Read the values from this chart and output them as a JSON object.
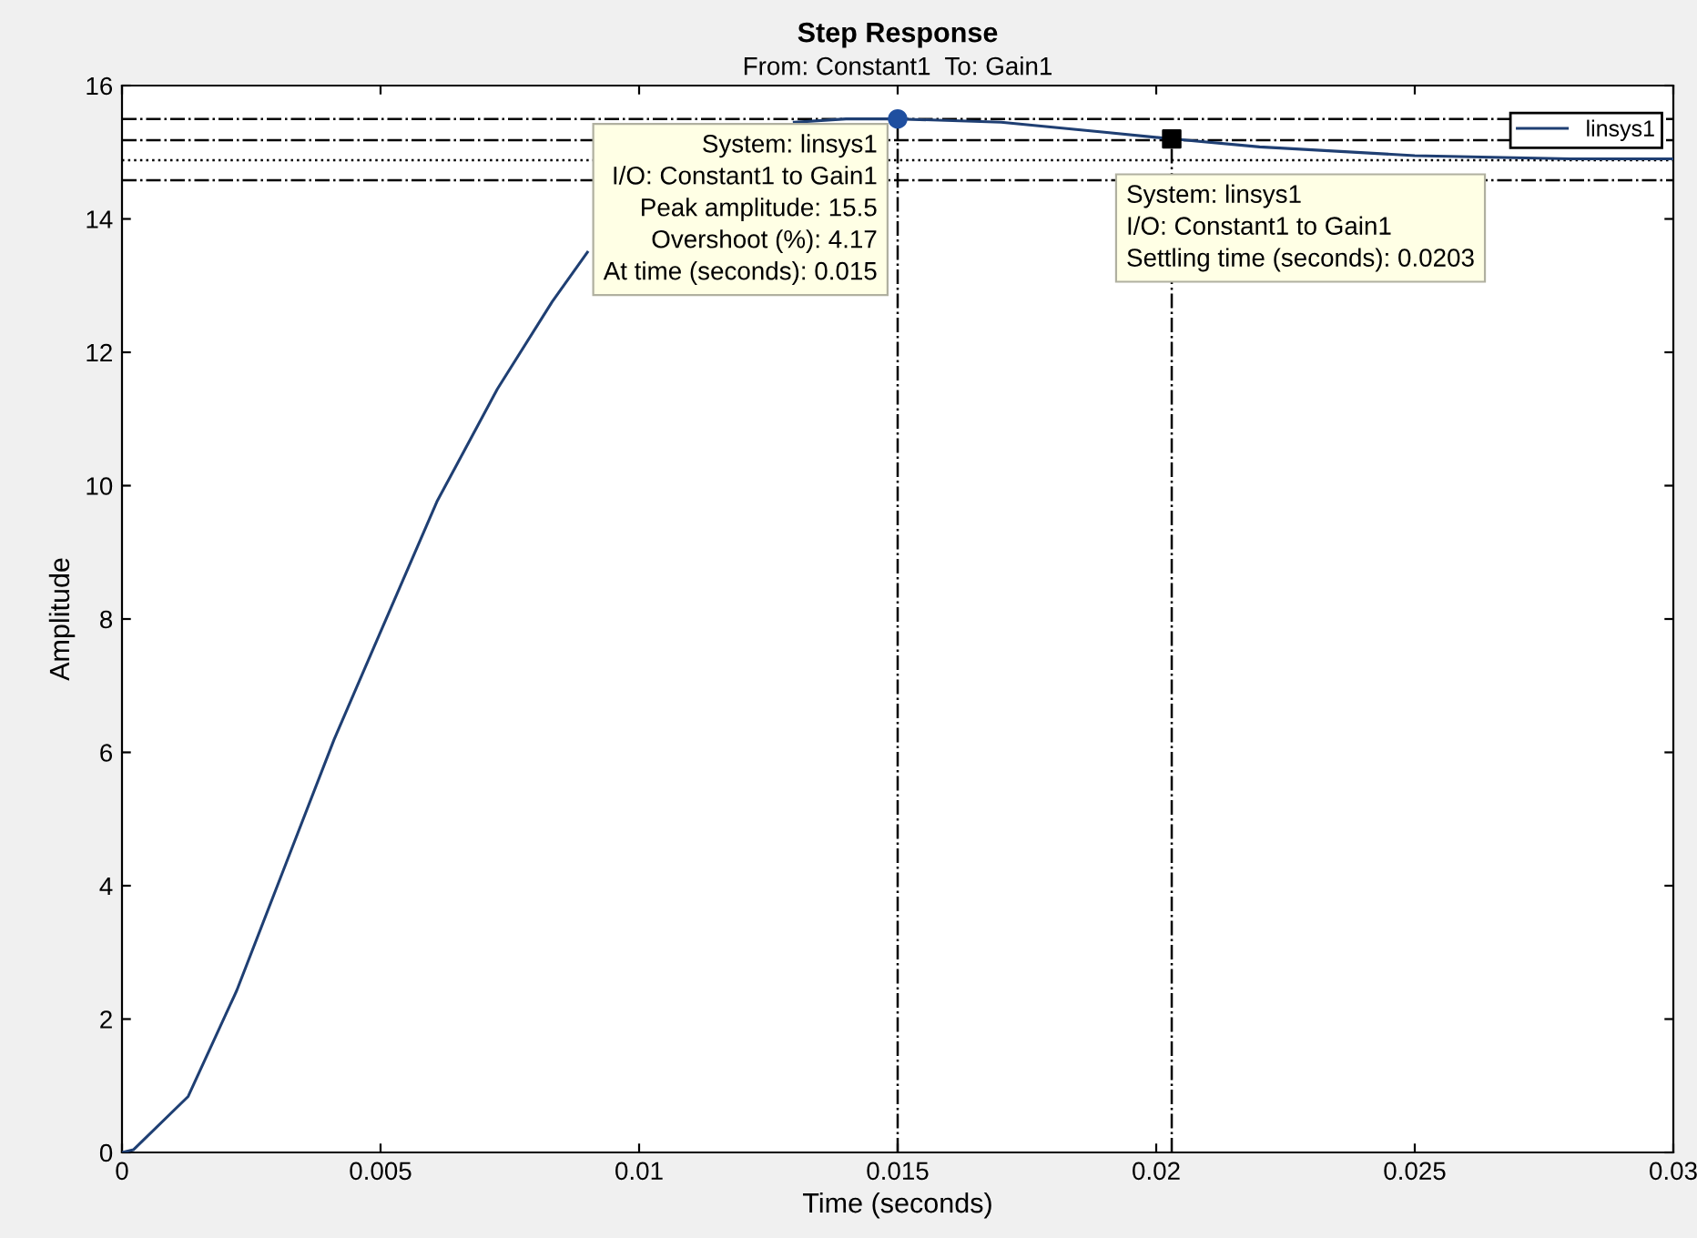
{
  "chart_data": {
    "type": "line",
    "title": "Step Response",
    "subtitle": "From: Constant1  To: Gain1",
    "xlabel": "Time (seconds)",
    "ylabel": "Amplitude",
    "xlim": [
      0,
      0.03
    ],
    "xticks": [
      0,
      0.005,
      0.01,
      0.015,
      0.02,
      0.025,
      0.03
    ],
    "ylim": [
      0,
      16
    ],
    "yticks": [
      0,
      2,
      4,
      6,
      8,
      10,
      12,
      14,
      16
    ],
    "grid": false,
    "legend": "top right",
    "series": [
      {
        "name": "linsys1",
        "color": "#1f3f73",
        "marker": "none",
        "line_style": "solid",
        "x": [
          0,
          0.00022,
          0.00128,
          0.00222,
          0.00316,
          0.0041,
          0.00504,
          0.00609,
          0.00726,
          0.00832,
          0.009,
          0.01,
          0.011,
          0.012,
          0.013,
          0.014,
          0.015,
          0.017,
          0.019,
          0.0203,
          0.022,
          0.025,
          0.028,
          0.03
        ],
        "values": [
          0,
          0.04,
          0.84,
          2.43,
          4.31,
          6.19,
          7.88,
          9.76,
          11.45,
          12.76,
          13.5,
          null,
          null,
          null,
          15.45,
          15.5,
          15.5,
          15.45,
          15.3,
          15.2,
          15.08,
          14.95,
          14.9,
          14.9
        ]
      },
      {
        "color": "#1f4fa0",
        "type": "scatter",
        "marker": "circle",
        "x": [
          0.015
        ],
        "values": [
          15.5
        ]
      },
      {
        "color": "#000000",
        "type": "scatter",
        "marker": "square",
        "x": [
          0.0203
        ],
        "values": [
          15.2
        ]
      }
    ],
    "ref_lines": [
      {
        "axis": "y",
        "value": 15.5,
        "line_style": "dashdot",
        "color": "#000000"
      },
      {
        "axis": "y",
        "value": 15.18,
        "line_style": "dashdot",
        "color": "#000000"
      },
      {
        "axis": "y",
        "value": 14.88,
        "line_style": "dotted",
        "color": "#000000"
      },
      {
        "axis": "y",
        "value": 14.58,
        "line_style": "dashdot",
        "color": "#000000"
      },
      {
        "axis": "x",
        "value": 0.015,
        "line_style": "dashdot",
        "color": "#000000"
      },
      {
        "axis": "x",
        "value": 0.0203,
        "line_style": "dashdot",
        "color": "#000000"
      }
    ],
    "annotations": [
      {
        "text": "System: linsys1\nI/O: Constant1 to Gain1\nPeak amplitude: 15.5\nOvershoot (%): 4.17\nAt time (seconds): 0.015",
        "x": 0.015,
        "y": 15.5
      },
      {
        "text": "System: linsys1\nI/O: Constant1 to Gain1\nSettling time (seconds): 0.0203",
        "x": 0.0203,
        "y": 15.2
      }
    ]
  }
}
